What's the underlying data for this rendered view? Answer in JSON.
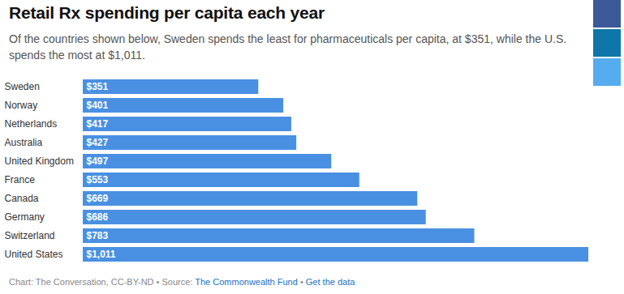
{
  "chart_data": {
    "type": "bar",
    "orientation": "horizontal",
    "title": "Retail Rx spending per capita each year",
    "subtitle": "Of the countries shown below, Sweden spends the least for pharmaceuticals per capita, at $351, while the U.S. spends the most at $1,011.",
    "categories": [
      "Sweden",
      "Norway",
      "Netherlands",
      "Australia",
      "United Kingdom",
      "France",
      "Canada",
      "Germany",
      "Switzerland",
      "United States"
    ],
    "values": [
      351,
      401,
      417,
      427,
      497,
      553,
      669,
      686,
      783,
      1011
    ],
    "value_labels": [
      "$351",
      "$401",
      "$417",
      "$427",
      "$497",
      "$553",
      "$669",
      "$686",
      "$783",
      "$1,011"
    ],
    "color": "#4a90e2",
    "xlim": [
      0,
      1011
    ],
    "data_labels": true,
    "tick_labels": "y",
    "grid": false,
    "caption": "Chart: The Conversation, CC-BY-ND",
    "separator": " • ",
    "source_label": "Source: ",
    "source": "The Commonwealth Fund",
    "data_link": "Get the data"
  }
}
